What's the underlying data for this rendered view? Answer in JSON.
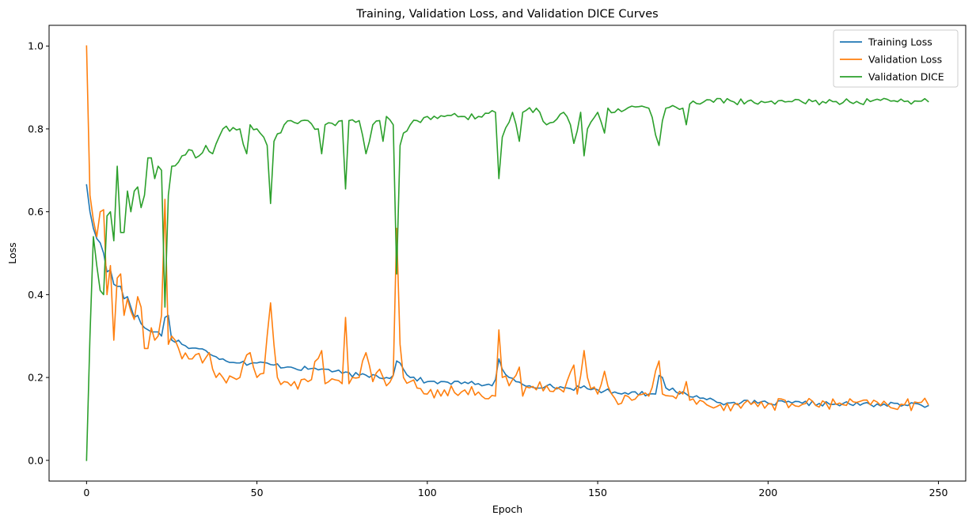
{
  "chart_data": {
    "type": "line",
    "title": "Training, Validation Loss, and Validation DICE Curves",
    "xlabel": "Epoch",
    "ylabel": "Loss",
    "xlim": [
      -11,
      258
    ],
    "ylim": [
      -0.05,
      1.05
    ],
    "xticks": [
      0,
      50,
      100,
      150,
      200,
      250
    ],
    "yticks": [
      0.0,
      0.2,
      0.4,
      0.6,
      0.8,
      1.0
    ],
    "xtick_labels": [
      "0",
      "50",
      "100",
      "150",
      "200",
      "250"
    ],
    "ytick_labels": [
      "0.0",
      "0.2",
      "0.4",
      "0.6",
      "0.8",
      "1.0"
    ],
    "grid": false,
    "legend_position": "top-right",
    "x_range": [
      0,
      247
    ],
    "series": [
      {
        "name": "Training Loss",
        "color": "#1f77b4",
        "keypoints": [
          [
            0,
            0.665
          ],
          [
            1,
            0.6
          ],
          [
            2,
            0.56
          ],
          [
            3,
            0.535
          ],
          [
            4,
            0.525
          ],
          [
            5,
            0.5
          ],
          [
            6,
            0.455
          ],
          [
            7,
            0.46
          ],
          [
            8,
            0.425
          ],
          [
            9,
            0.42
          ],
          [
            10,
            0.42
          ],
          [
            11,
            0.39
          ],
          [
            12,
            0.395
          ],
          [
            13,
            0.37
          ],
          [
            14,
            0.345
          ],
          [
            15,
            0.35
          ],
          [
            16,
            0.33
          ],
          [
            17,
            0.32
          ],
          [
            18,
            0.315
          ],
          [
            19,
            0.31
          ],
          [
            20,
            0.31
          ],
          [
            21,
            0.31
          ],
          [
            22,
            0.3
          ],
          [
            23,
            0.345
          ],
          [
            24,
            0.35
          ],
          [
            25,
            0.29
          ],
          [
            26,
            0.285
          ],
          [
            27,
            0.29
          ],
          [
            28,
            0.28
          ],
          [
            30,
            0.27
          ],
          [
            35,
            0.265
          ],
          [
            40,
            0.245
          ],
          [
            45,
            0.235
          ],
          [
            50,
            0.235
          ],
          [
            55,
            0.23
          ],
          [
            60,
            0.225
          ],
          [
            65,
            0.22
          ],
          [
            70,
            0.22
          ],
          [
            75,
            0.21
          ],
          [
            80,
            0.205
          ],
          [
            85,
            0.205
          ],
          [
            88,
            0.2
          ],
          [
            90,
            0.205
          ],
          [
            91,
            0.24
          ],
          [
            92,
            0.235
          ],
          [
            93,
            0.22
          ],
          [
            95,
            0.2
          ],
          [
            100,
            0.19
          ],
          [
            105,
            0.19
          ],
          [
            110,
            0.185
          ],
          [
            115,
            0.185
          ],
          [
            119,
            0.18
          ],
          [
            120,
            0.195
          ],
          [
            121,
            0.245
          ],
          [
            122,
            0.22
          ],
          [
            124,
            0.2
          ],
          [
            126,
            0.19
          ],
          [
            130,
            0.18
          ],
          [
            135,
            0.18
          ],
          [
            140,
            0.175
          ],
          [
            145,
            0.175
          ],
          [
            150,
            0.17
          ],
          [
            155,
            0.165
          ],
          [
            160,
            0.165
          ],
          [
            165,
            0.16
          ],
          [
            167,
            0.16
          ],
          [
            168,
            0.205
          ],
          [
            169,
            0.2
          ],
          [
            170,
            0.175
          ],
          [
            173,
            0.165
          ],
          [
            176,
            0.16
          ],
          [
            180,
            0.15
          ],
          [
            183,
            0.15
          ],
          [
            185,
            0.14
          ],
          [
            190,
            0.14
          ],
          [
            200,
            0.138
          ],
          [
            210,
            0.138
          ],
          [
            220,
            0.136
          ],
          [
            230,
            0.135
          ],
          [
            240,
            0.134
          ],
          [
            245,
            0.133
          ],
          [
            246,
            0.128
          ],
          [
            247,
            0.132
          ]
        ],
        "noise": 0.006
      },
      {
        "name": "Validation Loss",
        "color": "#ff7f0e",
        "keypoints": [
          [
            0,
            1.0
          ],
          [
            1,
            0.64
          ],
          [
            2,
            0.58
          ],
          [
            3,
            0.54
          ],
          [
            4,
            0.6
          ],
          [
            5,
            0.605
          ],
          [
            6,
            0.4
          ],
          [
            7,
            0.47
          ],
          [
            8,
            0.29
          ],
          [
            9,
            0.44
          ],
          [
            10,
            0.45
          ],
          [
            11,
            0.35
          ],
          [
            12,
            0.39
          ],
          [
            13,
            0.36
          ],
          [
            14,
            0.34
          ],
          [
            15,
            0.395
          ],
          [
            16,
            0.37
          ],
          [
            17,
            0.27
          ],
          [
            18,
            0.27
          ],
          [
            19,
            0.32
          ],
          [
            20,
            0.29
          ],
          [
            21,
            0.3
          ],
          [
            22,
            0.35
          ],
          [
            23,
            0.63
          ],
          [
            24,
            0.28
          ],
          [
            25,
            0.3
          ],
          [
            26,
            0.29
          ],
          [
            27,
            0.27
          ],
          [
            28,
            0.245
          ],
          [
            30,
            0.245
          ],
          [
            32,
            0.255
          ],
          [
            34,
            0.235
          ],
          [
            36,
            0.26
          ],
          [
            38,
            0.2
          ],
          [
            40,
            0.2
          ],
          [
            45,
            0.2
          ],
          [
            48,
            0.26
          ],
          [
            50,
            0.2
          ],
          [
            52,
            0.21
          ],
          [
            54,
            0.38
          ],
          [
            56,
            0.2
          ],
          [
            58,
            0.19
          ],
          [
            60,
            0.18
          ],
          [
            65,
            0.19
          ],
          [
            69,
            0.265
          ],
          [
            70,
            0.185
          ],
          [
            75,
            0.185
          ],
          [
            76,
            0.345
          ],
          [
            77,
            0.185
          ],
          [
            80,
            0.2
          ],
          [
            82,
            0.26
          ],
          [
            84,
            0.19
          ],
          [
            86,
            0.22
          ],
          [
            88,
            0.18
          ],
          [
            90,
            0.205
          ],
          [
            91,
            0.56
          ],
          [
            92,
            0.28
          ],
          [
            93,
            0.2
          ],
          [
            95,
            0.19
          ],
          [
            100,
            0.16
          ],
          [
            105,
            0.17
          ],
          [
            110,
            0.165
          ],
          [
            115,
            0.165
          ],
          [
            120,
            0.155
          ],
          [
            121,
            0.315
          ],
          [
            122,
            0.2
          ],
          [
            124,
            0.18
          ],
          [
            127,
            0.225
          ],
          [
            128,
            0.155
          ],
          [
            130,
            0.175
          ],
          [
            135,
            0.18
          ],
          [
            140,
            0.165
          ],
          [
            143,
            0.23
          ],
          [
            144,
            0.16
          ],
          [
            146,
            0.265
          ],
          [
            147,
            0.2
          ],
          [
            150,
            0.16
          ],
          [
            152,
            0.215
          ],
          [
            155,
            0.15
          ],
          [
            160,
            0.145
          ],
          [
            165,
            0.155
          ],
          [
            168,
            0.24
          ],
          [
            169,
            0.16
          ],
          [
            172,
            0.155
          ],
          [
            175,
            0.16
          ],
          [
            176,
            0.19
          ],
          [
            177,
            0.145
          ],
          [
            180,
            0.145
          ],
          [
            183,
            0.13
          ],
          [
            185,
            0.13
          ],
          [
            190,
            0.135
          ],
          [
            200,
            0.136
          ],
          [
            210,
            0.135
          ],
          [
            220,
            0.135
          ],
          [
            230,
            0.134
          ],
          [
            240,
            0.134
          ],
          [
            247,
            0.135
          ]
        ],
        "noise": 0.015
      },
      {
        "name": "Validation DICE",
        "color": "#2ca02c",
        "keypoints": [
          [
            0,
            0.0
          ],
          [
            1,
            0.3
          ],
          [
            2,
            0.54
          ],
          [
            3,
            0.47
          ],
          [
            4,
            0.41
          ],
          [
            5,
            0.4
          ],
          [
            6,
            0.59
          ],
          [
            7,
            0.6
          ],
          [
            8,
            0.53
          ],
          [
            9,
            0.71
          ],
          [
            10,
            0.55
          ],
          [
            11,
            0.55
          ],
          [
            12,
            0.65
          ],
          [
            13,
            0.6
          ],
          [
            14,
            0.65
          ],
          [
            15,
            0.66
          ],
          [
            16,
            0.61
          ],
          [
            17,
            0.64
          ],
          [
            18,
            0.73
          ],
          [
            19,
            0.73
          ],
          [
            20,
            0.68
          ],
          [
            21,
            0.71
          ],
          [
            22,
            0.7
          ],
          [
            23,
            0.37
          ],
          [
            24,
            0.64
          ],
          [
            25,
            0.71
          ],
          [
            27,
            0.72
          ],
          [
            30,
            0.75
          ],
          [
            32,
            0.73
          ],
          [
            35,
            0.76
          ],
          [
            37,
            0.74
          ],
          [
            40,
            0.8
          ],
          [
            45,
            0.8
          ],
          [
            47,
            0.74
          ],
          [
            48,
            0.81
          ],
          [
            50,
            0.8
          ],
          [
            52,
            0.78
          ],
          [
            53,
            0.76
          ],
          [
            54,
            0.62
          ],
          [
            55,
            0.77
          ],
          [
            58,
            0.81
          ],
          [
            60,
            0.82
          ],
          [
            65,
            0.82
          ],
          [
            68,
            0.8
          ],
          [
            69,
            0.74
          ],
          [
            70,
            0.81
          ],
          [
            75,
            0.82
          ],
          [
            76,
            0.655
          ],
          [
            77,
            0.82
          ],
          [
            80,
            0.82
          ],
          [
            82,
            0.74
          ],
          [
            84,
            0.81
          ],
          [
            86,
            0.82
          ],
          [
            87,
            0.77
          ],
          [
            88,
            0.83
          ],
          [
            90,
            0.81
          ],
          [
            91,
            0.45
          ],
          [
            92,
            0.76
          ],
          [
            93,
            0.79
          ],
          [
            95,
            0.81
          ],
          [
            100,
            0.83
          ],
          [
            105,
            0.83
          ],
          [
            110,
            0.83
          ],
          [
            115,
            0.83
          ],
          [
            120,
            0.84
          ],
          [
            121,
            0.68
          ],
          [
            122,
            0.78
          ],
          [
            125,
            0.84
          ],
          [
            127,
            0.77
          ],
          [
            128,
            0.84
          ],
          [
            132,
            0.85
          ],
          [
            135,
            0.81
          ],
          [
            140,
            0.84
          ],
          [
            142,
            0.81
          ],
          [
            143,
            0.765
          ],
          [
            145,
            0.84
          ],
          [
            146,
            0.735
          ],
          [
            147,
            0.8
          ],
          [
            150,
            0.84
          ],
          [
            152,
            0.79
          ],
          [
            153,
            0.85
          ],
          [
            155,
            0.84
          ],
          [
            160,
            0.855
          ],
          [
            165,
            0.85
          ],
          [
            168,
            0.76
          ],
          [
            169,
            0.82
          ],
          [
            170,
            0.85
          ],
          [
            175,
            0.85
          ],
          [
            176,
            0.81
          ],
          [
            177,
            0.86
          ],
          [
            180,
            0.86
          ],
          [
            183,
            0.87
          ],
          [
            190,
            0.865
          ],
          [
            200,
            0.865
          ],
          [
            202,
            0.86
          ],
          [
            205,
            0.865
          ],
          [
            210,
            0.865
          ],
          [
            220,
            0.866
          ],
          [
            230,
            0.866
          ],
          [
            240,
            0.866
          ],
          [
            247,
            0.866
          ]
        ],
        "noise": 0.008
      }
    ]
  }
}
